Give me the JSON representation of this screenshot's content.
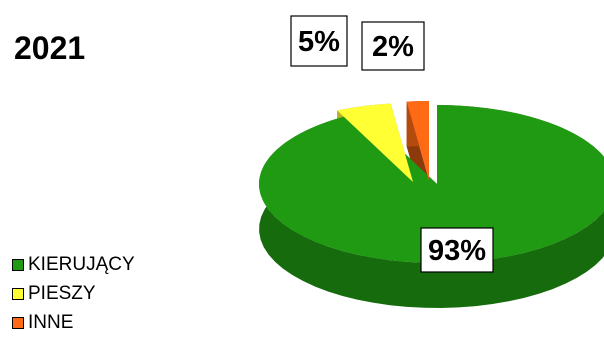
{
  "chart_data": {
    "type": "pie",
    "title": "2021",
    "categories": [
      "KIERUJĄCY",
      "PIESZY",
      "INNE"
    ],
    "values": [
      93,
      5,
      2
    ],
    "data_labels": [
      "93%",
      "5%",
      "2%"
    ],
    "colors": [
      "#1f9a12",
      "#ffff33",
      "#ff6a14"
    ],
    "legend_position": "bottom-left",
    "exploded": true,
    "three_d": true
  }
}
